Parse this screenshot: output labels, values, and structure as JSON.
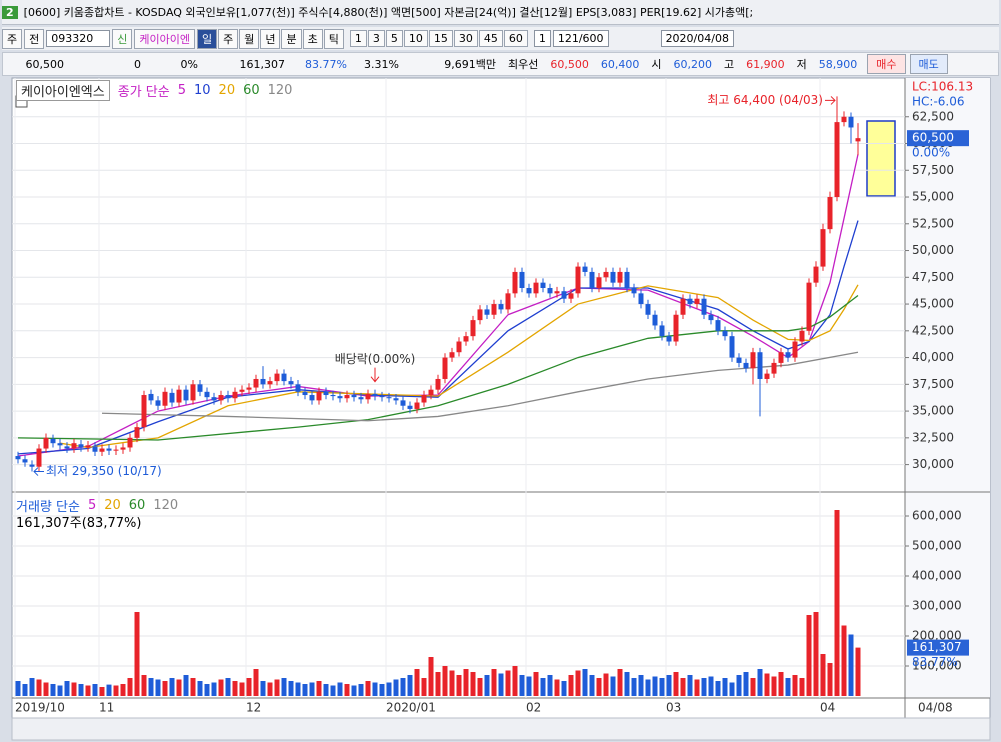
{
  "window": {
    "badge": "2",
    "title": "[0600] 키움종합차트 - KOSDAQ 외국인보유[1,077(천)] 주식수[4,880(천)] 액면[500] 자본금[24(억)] 결산[12월] EPS[3,083] PER[19.62] 시가총액[;"
  },
  "toolbar": {
    "period": "주",
    "prev": "전",
    "code": "093320",
    "credit": "신",
    "stock_name": "케이아이엔",
    "intervals": [
      "일",
      "주",
      "월",
      "년",
      "분",
      "초",
      "틱"
    ],
    "minutes": [
      "1",
      "3",
      "5",
      "10",
      "15",
      "30",
      "45",
      "60"
    ],
    "count_unit": "1",
    "count": "121/600",
    "date": "2020/04/08"
  },
  "quote": {
    "price": "60,500",
    "change": "0",
    "change_pct": "0%",
    "volume": "161,307",
    "volume_ratio": "83.77%",
    "turnover": "3.31%",
    "amount": "9,691백만",
    "best_label": "최우선",
    "ask": "60,500",
    "bid": "60,400",
    "open_label": "시",
    "open": "60,200",
    "high_label": "고",
    "high": "61,900",
    "low_label": "저",
    "low": "58,900",
    "buy": "매수",
    "sell": "매도"
  },
  "chart_data": {
    "type": "candlestick",
    "title": "케이아이엔엑스",
    "ma_label": "종가 단순",
    "up_color": "#e8232a",
    "down_color": "#1e5cd8",
    "categories": [
      "2019/10",
      null,
      null,
      null,
      null,
      null,
      null,
      null,
      null,
      null,
      null,
      null,
      "11",
      null,
      null,
      null,
      null,
      null,
      null,
      null,
      null,
      null,
      null,
      null,
      null,
      null,
      null,
      null,
      null,
      null,
      null,
      null,
      null,
      "12",
      null,
      null,
      null,
      null,
      null,
      null,
      null,
      null,
      null,
      null,
      null,
      null,
      null,
      null,
      null,
      null,
      null,
      null,
      null,
      "2020/01",
      null,
      null,
      null,
      null,
      null,
      null,
      null,
      null,
      null,
      null,
      null,
      null,
      null,
      null,
      null,
      null,
      null,
      null,
      null,
      "02",
      null,
      null,
      null,
      null,
      null,
      null,
      null,
      null,
      null,
      null,
      null,
      null,
      null,
      null,
      null,
      null,
      null,
      null,
      null,
      "03",
      null,
      null,
      null,
      null,
      null,
      null,
      null,
      null,
      null,
      null,
      null,
      null,
      null,
      null,
      null,
      null,
      null,
      null,
      null,
      null,
      null,
      "04",
      null,
      null,
      null,
      null,
      null
    ],
    "open": [
      30800,
      30500,
      30000,
      29800,
      31500,
      32400,
      32000,
      31700,
      31500,
      31900,
      31600,
      31700,
      31200,
      31500,
      31300,
      31400,
      31600,
      32500,
      33500,
      36600,
      36000,
      35500,
      36700,
      35800,
      37000,
      36000,
      37500,
      36800,
      36300,
      36000,
      36500,
      36200,
      36800,
      37000,
      37200,
      38000,
      37500,
      37800,
      38500,
      37800,
      37500,
      36800,
      36500,
      36000,
      36800,
      36500,
      36400,
      36200,
      36500,
      36300,
      36100,
      36600,
      36400,
      36300,
      36200,
      36000,
      35500,
      35200,
      35800,
      36500,
      37000,
      38000,
      40000,
      40500,
      41500,
      42000,
      43500,
      44500,
      44000,
      45000,
      44500,
      46000,
      48000,
      46500,
      46000,
      47000,
      46500,
      46000,
      46200,
      45500,
      46000,
      48500,
      48000,
      46500,
      47500,
      48000,
      47000,
      48000,
      46500,
      46000,
      45000,
      44000,
      43000,
      42000,
      41500,
      44000,
      45500,
      45000,
      45500,
      44000,
      43500,
      42500,
      42000,
      40000,
      39500,
      39000,
      40500,
      38000,
      38500,
      39500,
      40500,
      40000,
      41500,
      42500,
      47000,
      48500,
      52000,
      55000,
      62000,
      62500,
      60200
    ],
    "high": [
      31200,
      30900,
      30400,
      31900,
      32900,
      32800,
      32400,
      32100,
      32400,
      32300,
      32200,
      32100,
      31900,
      31900,
      31800,
      32000,
      32900,
      33900,
      36900,
      37000,
      36400,
      37200,
      37100,
      37400,
      37400,
      37900,
      37900,
      37200,
      36700,
      36900,
      36900,
      37200,
      37400,
      37600,
      38400,
      39200,
      38200,
      38900,
      38900,
      38200,
      37900,
      37200,
      36900,
      37200,
      37200,
      36900,
      36800,
      36900,
      36900,
      36700,
      37000,
      37000,
      36800,
      36700,
      36600,
      36400,
      35900,
      36200,
      36900,
      37400,
      38400,
      40400,
      40900,
      41900,
      42400,
      43900,
      44900,
      44900,
      45400,
      45400,
      46400,
      48400,
      48400,
      46900,
      47400,
      47400,
      46900,
      46600,
      46600,
      46400,
      48900,
      48900,
      48400,
      47900,
      48400,
      48400,
      48400,
      48400,
      46900,
      46400,
      45400,
      44400,
      43400,
      42400,
      44400,
      45900,
      45900,
      45900,
      45900,
      44400,
      43900,
      42900,
      42400,
      40400,
      39900,
      40900,
      40900,
      38900,
      39900,
      40900,
      40900,
      41900,
      42900,
      47400,
      49000,
      52500,
      55500,
      64400,
      63000,
      62900,
      61900
    ],
    "low": [
      30100,
      29800,
      29350,
      29400,
      31100,
      31600,
      31400,
      31100,
      31100,
      31200,
      31200,
      30800,
      30800,
      30900,
      30900,
      31000,
      31200,
      32100,
      33100,
      35600,
      35100,
      35100,
      35400,
      35400,
      35600,
      35600,
      36400,
      35900,
      35600,
      35600,
      35800,
      35800,
      36400,
      36600,
      36800,
      37100,
      37100,
      37400,
      37400,
      37100,
      36400,
      36100,
      35600,
      35600,
      36100,
      36000,
      35800,
      35800,
      35900,
      35700,
      35700,
      36000,
      35900,
      35800,
      35600,
      35100,
      34800,
      34800,
      35400,
      36100,
      36600,
      37600,
      39600,
      40100,
      41100,
      41600,
      43100,
      43600,
      43600,
      44100,
      44100,
      45600,
      46100,
      45600,
      45600,
      46100,
      45600,
      45600,
      45100,
      45100,
      45600,
      47600,
      46100,
      46100,
      47100,
      46600,
      46600,
      46100,
      45600,
      44600,
      43600,
      42600,
      41600,
      41100,
      41100,
      43600,
      44600,
      44600,
      43600,
      43100,
      42100,
      41600,
      39600,
      39100,
      38600,
      37500,
      34500,
      37600,
      38100,
      39100,
      39600,
      39600,
      41100,
      42100,
      46600,
      48100,
      51600,
      54600,
      61600,
      60000,
      58900
    ],
    "close": [
      30500,
      30200,
      29800,
      31500,
      32500,
      32000,
      31800,
      31500,
      32000,
      31600,
      31800,
      31200,
      31500,
      31300,
      31400,
      31600,
      32500,
      33500,
      36500,
      36000,
      35500,
      36800,
      35800,
      37000,
      36000,
      37500,
      36800,
      36300,
      36000,
      36500,
      36200,
      36800,
      37000,
      37200,
      38000,
      37500,
      37800,
      38500,
      37800,
      37500,
      36800,
      36500,
      36000,
      36800,
      36500,
      36400,
      36200,
      36500,
      36300,
      36100,
      36600,
      36400,
      36300,
      36200,
      36000,
      35500,
      35200,
      35800,
      36500,
      37000,
      38000,
      40000,
      40500,
      41500,
      42000,
      43500,
      44500,
      44000,
      45000,
      44500,
      46000,
      48000,
      46500,
      46000,
      47000,
      46500,
      46000,
      46200,
      45500,
      46000,
      48500,
      48000,
      46500,
      47500,
      48000,
      47000,
      48000,
      46500,
      46000,
      45000,
      44000,
      43000,
      42000,
      41500,
      44000,
      45500,
      45000,
      45500,
      44000,
      43500,
      42500,
      42000,
      40000,
      39500,
      39000,
      40500,
      38000,
      38500,
      39500,
      40500,
      40000,
      41500,
      42500,
      47000,
      48500,
      52000,
      55000,
      62000,
      62500,
      61500,
      60500
    ],
    "volume": [
      50000,
      40000,
      60000,
      55000,
      45000,
      40000,
      35000,
      50000,
      45000,
      40000,
      35000,
      40000,
      30000,
      38000,
      35000,
      40000,
      60000,
      280000,
      70000,
      60000,
      55000,
      50000,
      60000,
      55000,
      70000,
      60000,
      50000,
      40000,
      45000,
      55000,
      60000,
      50000,
      45000,
      60000,
      90000,
      50000,
      45000,
      55000,
      60000,
      50000,
      45000,
      40000,
      45000,
      50000,
      40000,
      35000,
      45000,
      40000,
      35000,
      40000,
      50000,
      45000,
      40000,
      45000,
      55000,
      60000,
      70000,
      90000,
      60000,
      130000,
      80000,
      100000,
      85000,
      70000,
      90000,
      80000,
      60000,
      70000,
      90000,
      75000,
      85000,
      100000,
      70000,
      65000,
      80000,
      60000,
      70000,
      55000,
      50000,
      70000,
      85000,
      90000,
      70000,
      60000,
      75000,
      65000,
      90000,
      80000,
      60000,
      70000,
      55000,
      65000,
      60000,
      70000,
      80000,
      60000,
      70000,
      55000,
      60000,
      65000,
      50000,
      60000,
      45000,
      70000,
      80000,
      60000,
      90000,
      75000,
      65000,
      80000,
      60000,
      70000,
      60000,
      270000,
      280000,
      140000,
      110000,
      620000,
      235000,
      205000,
      161307
    ],
    "moving_averages": [
      {
        "name": "5",
        "color": "#c41fc4",
        "x": [
          0,
          10,
          20,
          30,
          40,
          50,
          60,
          70,
          80,
          90,
          100,
          105,
          110,
          113,
          116,
          118,
          120
        ],
        "values": [
          30800,
          31700,
          35000,
          36400,
          37300,
          36400,
          36500,
          44000,
          46500,
          46300,
          43800,
          42000,
          40000,
          41500,
          47000,
          53000,
          59000
        ]
      },
      {
        "name": "10",
        "color": "#1f3fd0",
        "x": [
          0,
          10,
          20,
          30,
          40,
          50,
          60,
          70,
          80,
          90,
          100,
          105,
          110,
          113,
          116,
          118,
          120
        ],
        "values": [
          31000,
          31500,
          34000,
          36300,
          37000,
          36500,
          36300,
          42500,
          46500,
          46500,
          44500,
          42500,
          40800,
          41500,
          44000,
          48500,
          52800
        ]
      },
      {
        "name": "20",
        "color": "#e3a500",
        "x": [
          6,
          10,
          20,
          30,
          40,
          50,
          60,
          70,
          80,
          90,
          100,
          105,
          110,
          113,
          116,
          118,
          120
        ],
        "values": [
          32000,
          31600,
          32500,
          35500,
          36800,
          36600,
          36400,
          40500,
          45000,
          46700,
          45600,
          43500,
          41700,
          41600,
          42500,
          44500,
          46800
        ]
      },
      {
        "name": "60",
        "color": "#2a8a2a",
        "x": [
          0,
          20,
          40,
          50,
          60,
          70,
          80,
          90,
          100,
          110,
          113,
          116,
          120
        ],
        "values": [
          32500,
          32300,
          33500,
          34200,
          35500,
          37500,
          40000,
          41800,
          42500,
          42500,
          42800,
          43800,
          45800
        ]
      },
      {
        "name": "120",
        "color": "#888888",
        "x": [
          12,
          30,
          50,
          60,
          70,
          80,
          90,
          100,
          110,
          120
        ],
        "values": [
          34800,
          34500,
          34100,
          34500,
          35500,
          36800,
          38000,
          38800,
          39300,
          40500
        ]
      }
    ],
    "ylim": [
      28000,
      65000
    ],
    "yticks": [
      {
        "value": 30000,
        "label": "30,000"
      },
      {
        "value": 32500,
        "label": "32,500"
      },
      {
        "value": 35000,
        "label": "35,000"
      },
      {
        "value": 37500,
        "label": "37,500"
      },
      {
        "value": 40000,
        "label": "40,000"
      },
      {
        "value": 42500,
        "label": "42,500"
      },
      {
        "value": 45000,
        "label": "45,000"
      },
      {
        "value": 47500,
        "label": "47,500"
      },
      {
        "value": 50000,
        "label": "50,000"
      },
      {
        "value": 52500,
        "label": "52,500"
      },
      {
        "value": 55000,
        "label": "55,000"
      },
      {
        "value": 57500,
        "label": "57,500"
      },
      {
        "value": 60000,
        "label": "60,000"
      },
      {
        "value": 62500,
        "label": "62,500"
      }
    ],
    "volume_title": "거래량 단순",
    "volume_info": "161,307주(83,77%)",
    "volume_ma_legend": [
      {
        "name": "5",
        "color": "#c41fc4"
      },
      {
        "name": "20",
        "color": "#e3a500"
      },
      {
        "name": "60",
        "color": "#2a8a2a"
      },
      {
        "name": "120",
        "color": "#888888"
      }
    ],
    "volume_ylim": [
      0,
      640000
    ],
    "volume_yticks": [
      {
        "value": 100000,
        "label": "100,000"
      },
      {
        "value": 200000,
        "label": "200,000"
      },
      {
        "value": 300000,
        "label": "300,000"
      },
      {
        "value": 400000,
        "label": "400,000"
      },
      {
        "value": 500000,
        "label": "500,000"
      },
      {
        "value": 600000,
        "label": "600,000"
      }
    ],
    "annotations": [
      {
        "text": "최고 64,400 (04/03)",
        "index": 117,
        "value": 64400,
        "color": "#e8232a",
        "side": "left"
      },
      {
        "text": "최저 29,350 (10/17)",
        "index": 2,
        "value": 29350,
        "color": "#1e5cd8",
        "side": "right"
      },
      {
        "text": "배당락(0.00%)",
        "index": 51,
        "value": 37000,
        "color": "#333333",
        "side": "above"
      }
    ],
    "lc": "LC:106.13",
    "hc": "HC:-6.06",
    "last_price": "60,500",
    "last_change": "0.00%",
    "last_volume": "161,307",
    "last_volume_ratio": "83.77%",
    "last_date": "04/08",
    "grid": true
  }
}
